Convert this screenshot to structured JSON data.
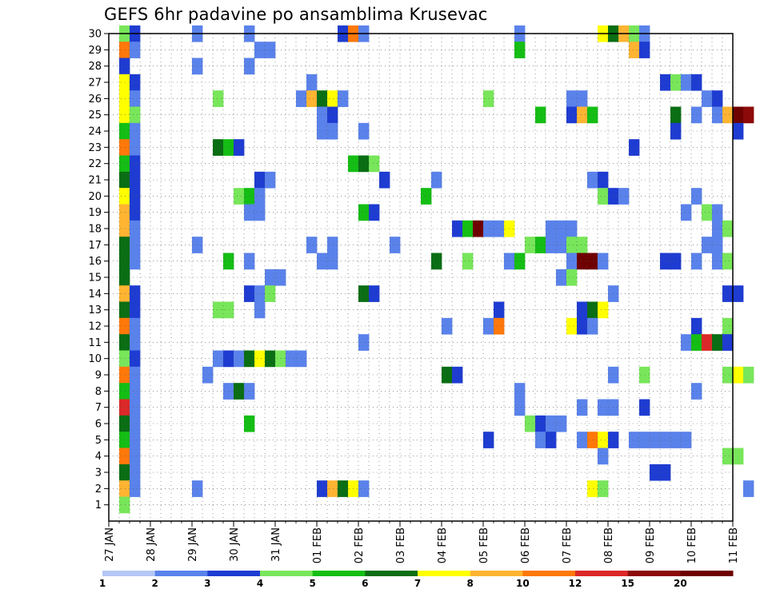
{
  "chart_data": {
    "type": "heatmap",
    "title": "GEFS 6hr padavine po ansamblima Krusevac",
    "xlabel": "",
    "ylabel": "",
    "y_ticks": [
      1,
      2,
      3,
      4,
      5,
      6,
      7,
      8,
      9,
      10,
      11,
      12,
      13,
      14,
      15,
      16,
      17,
      18,
      19,
      20,
      21,
      22,
      23,
      24,
      25,
      26,
      27,
      28,
      29,
      30
    ],
    "ylim": [
      0,
      30
    ],
    "x_tick_labels": [
      "27 JAN",
      "28 JAN",
      "29 JAN",
      "30 JAN",
      "31 JAN",
      "01 FEB",
      "02 FEB",
      "03 FEB",
      "04 FEB",
      "05 FEB",
      "06 FEB",
      "07 FEB",
      "08 FEB",
      "09 FEB",
      "10 FEB",
      "11 FEB"
    ],
    "steps_per_day": 4,
    "legend": {
      "labels": [
        "1",
        "2",
        "3",
        "4",
        "5",
        "6",
        "7",
        "8",
        "10",
        "12",
        "15",
        "20"
      ],
      "colors": [
        "#b4c8f5",
        "#5a82eb",
        "#1e3cd2",
        "#78e65a",
        "#14be14",
        "#0a6e14",
        "#ffff00",
        "#ffb432",
        "#ff780a",
        "#dc2828",
        "#8c0a0a",
        "#6e0000"
      ]
    },
    "cells": [
      {
        "m": 30,
        "s": 1,
        "c": 3
      },
      {
        "m": 30,
        "s": 2,
        "c": 2
      },
      {
        "m": 30,
        "s": 8,
        "c": 1
      },
      {
        "m": 30,
        "s": 13,
        "c": 1
      },
      {
        "m": 30,
        "s": 22,
        "c": 2
      },
      {
        "m": 30,
        "s": 23,
        "c": 8
      },
      {
        "m": 30,
        "s": 24,
        "c": 1
      },
      {
        "m": 30,
        "s": 39,
        "c": 1
      },
      {
        "m": 30,
        "s": 47,
        "c": 6
      },
      {
        "m": 30,
        "s": 48,
        "c": 5
      },
      {
        "m": 30,
        "s": 49,
        "c": 7
      },
      {
        "m": 30,
        "s": 50,
        "c": 3
      },
      {
        "m": 30,
        "s": 51,
        "c": 1
      },
      {
        "m": 29,
        "s": 1,
        "c": 8
      },
      {
        "m": 29,
        "s": 2,
        "c": 1
      },
      {
        "m": 29,
        "s": 14,
        "c": 1
      },
      {
        "m": 29,
        "s": 15,
        "c": 1
      },
      {
        "m": 29,
        "s": 39,
        "c": 4
      },
      {
        "m": 29,
        "s": 50,
        "c": 7
      },
      {
        "m": 29,
        "s": 51,
        "c": 2
      },
      {
        "m": 28,
        "s": 1,
        "c": 2
      },
      {
        "m": 28,
        "s": 8,
        "c": 1
      },
      {
        "m": 28,
        "s": 13,
        "c": 1
      },
      {
        "m": 27,
        "s": 1,
        "c": 6
      },
      {
        "m": 27,
        "s": 2,
        "c": 2
      },
      {
        "m": 27,
        "s": 19,
        "c": 1
      },
      {
        "m": 27,
        "s": 53,
        "c": 2
      },
      {
        "m": 27,
        "s": 54,
        "c": 3
      },
      {
        "m": 27,
        "s": 55,
        "c": 1
      },
      {
        "m": 27,
        "s": 56,
        "c": 2
      },
      {
        "m": 26,
        "s": 1,
        "c": 6
      },
      {
        "m": 26,
        "s": 2,
        "c": 1
      },
      {
        "m": 26,
        "s": 10,
        "c": 3
      },
      {
        "m": 26,
        "s": 18,
        "c": 1
      },
      {
        "m": 26,
        "s": 19,
        "c": 7
      },
      {
        "m": 26,
        "s": 20,
        "c": 5
      },
      {
        "m": 26,
        "s": 21,
        "c": 6
      },
      {
        "m": 26,
        "s": 22,
        "c": 1
      },
      {
        "m": 26,
        "s": 36,
        "c": 3
      },
      {
        "m": 26,
        "s": 44,
        "c": 1
      },
      {
        "m": 26,
        "s": 45,
        "c": 1
      },
      {
        "m": 26,
        "s": 57,
        "c": 1
      },
      {
        "m": 26,
        "s": 58,
        "c": 2
      },
      {
        "m": 25,
        "s": 1,
        "c": 6
      },
      {
        "m": 25,
        "s": 2,
        "c": 3
      },
      {
        "m": 25,
        "s": 20,
        "c": 1
      },
      {
        "m": 25,
        "s": 21,
        "c": 2
      },
      {
        "m": 25,
        "s": 41,
        "c": 4
      },
      {
        "m": 25,
        "s": 44,
        "c": 2
      },
      {
        "m": 25,
        "s": 45,
        "c": 7
      },
      {
        "m": 25,
        "s": 46,
        "c": 4
      },
      {
        "m": 25,
        "s": 54,
        "c": 5
      },
      {
        "m": 25,
        "s": 56,
        "c": 1
      },
      {
        "m": 25,
        "s": 58,
        "c": 1
      },
      {
        "m": 25,
        "s": 59,
        "c": 7
      },
      {
        "m": 25,
        "s": 60,
        "c": 11
      },
      {
        "m": 25,
        "s": 61,
        "c": 10
      },
      {
        "m": 24,
        "s": 1,
        "c": 4
      },
      {
        "m": 24,
        "s": 2,
        "c": 1
      },
      {
        "m": 24,
        "s": 20,
        "c": 1
      },
      {
        "m": 24,
        "s": 21,
        "c": 1
      },
      {
        "m": 24,
        "s": 24,
        "c": 1
      },
      {
        "m": 24,
        "s": 54,
        "c": 2
      },
      {
        "m": 24,
        "s": 60,
        "c": 2
      },
      {
        "m": 23,
        "s": 1,
        "c": 8
      },
      {
        "m": 23,
        "s": 2,
        "c": 1
      },
      {
        "m": 23,
        "s": 10,
        "c": 5
      },
      {
        "m": 23,
        "s": 11,
        "c": 4
      },
      {
        "m": 23,
        "s": 12,
        "c": 2
      },
      {
        "m": 23,
        "s": 50,
        "c": 2
      },
      {
        "m": 22,
        "s": 1,
        "c": 4
      },
      {
        "m": 22,
        "s": 2,
        "c": 2
      },
      {
        "m": 22,
        "s": 23,
        "c": 4
      },
      {
        "m": 22,
        "s": 24,
        "c": 5
      },
      {
        "m": 22,
        "s": 25,
        "c": 3
      },
      {
        "m": 21,
        "s": 1,
        "c": 5
      },
      {
        "m": 21,
        "s": 2,
        "c": 2
      },
      {
        "m": 21,
        "s": 14,
        "c": 2
      },
      {
        "m": 21,
        "s": 15,
        "c": 1
      },
      {
        "m": 21,
        "s": 26,
        "c": 2
      },
      {
        "m": 21,
        "s": 31,
        "c": 1
      },
      {
        "m": 21,
        "s": 46,
        "c": 1
      },
      {
        "m": 21,
        "s": 47,
        "c": 2
      },
      {
        "m": 20,
        "s": 1,
        "c": 6
      },
      {
        "m": 20,
        "s": 2,
        "c": 2
      },
      {
        "m": 20,
        "s": 12,
        "c": 3
      },
      {
        "m": 20,
        "s": 13,
        "c": 4
      },
      {
        "m": 20,
        "s": 14,
        "c": 1
      },
      {
        "m": 20,
        "s": 30,
        "c": 4
      },
      {
        "m": 20,
        "s": 47,
        "c": 3
      },
      {
        "m": 20,
        "s": 48,
        "c": 2
      },
      {
        "m": 20,
        "s": 49,
        "c": 1
      },
      {
        "m": 20,
        "s": 56,
        "c": 1
      },
      {
        "m": 19,
        "s": 1,
        "c": 7
      },
      {
        "m": 19,
        "s": 2,
        "c": 2
      },
      {
        "m": 19,
        "s": 13,
        "c": 1
      },
      {
        "m": 19,
        "s": 14,
        "c": 1
      },
      {
        "m": 19,
        "s": 24,
        "c": 4
      },
      {
        "m": 19,
        "s": 25,
        "c": 2
      },
      {
        "m": 19,
        "s": 55,
        "c": 1
      },
      {
        "m": 19,
        "s": 57,
        "c": 3
      },
      {
        "m": 19,
        "s": 58,
        "c": 1
      },
      {
        "m": 18,
        "s": 1,
        "c": 7
      },
      {
        "m": 18,
        "s": 2,
        "c": 1
      },
      {
        "m": 18,
        "s": 33,
        "c": 2
      },
      {
        "m": 18,
        "s": 34,
        "c": 4
      },
      {
        "m": 18,
        "s": 35,
        "c": 11
      },
      {
        "m": 18,
        "s": 36,
        "c": 1
      },
      {
        "m": 18,
        "s": 37,
        "c": 1
      },
      {
        "m": 18,
        "s": 38,
        "c": 6
      },
      {
        "m": 18,
        "s": 42,
        "c": 1
      },
      {
        "m": 18,
        "s": 43,
        "c": 1
      },
      {
        "m": 18,
        "s": 44,
        "c": 1
      },
      {
        "m": 18,
        "s": 58,
        "c": 1
      },
      {
        "m": 18,
        "s": 59,
        "c": 3
      },
      {
        "m": 17,
        "s": 1,
        "c": 5
      },
      {
        "m": 17,
        "s": 2,
        "c": 1
      },
      {
        "m": 17,
        "s": 8,
        "c": 1
      },
      {
        "m": 17,
        "s": 19,
        "c": 1
      },
      {
        "m": 17,
        "s": 21,
        "c": 1
      },
      {
        "m": 17,
        "s": 27,
        "c": 1
      },
      {
        "m": 17,
        "s": 40,
        "c": 3
      },
      {
        "m": 17,
        "s": 41,
        "c": 4
      },
      {
        "m": 17,
        "s": 42,
        "c": 1
      },
      {
        "m": 17,
        "s": 43,
        "c": 1
      },
      {
        "m": 17,
        "s": 44,
        "c": 3
      },
      {
        "m": 17,
        "s": 45,
        "c": 3
      },
      {
        "m": 17,
        "s": 57,
        "c": 1
      },
      {
        "m": 17,
        "s": 58,
        "c": 1
      },
      {
        "m": 16,
        "s": 1,
        "c": 5
      },
      {
        "m": 16,
        "s": 2,
        "c": 1
      },
      {
        "m": 16,
        "s": 11,
        "c": 4
      },
      {
        "m": 16,
        "s": 13,
        "c": 1
      },
      {
        "m": 16,
        "s": 20,
        "c": 1
      },
      {
        "m": 16,
        "s": 21,
        "c": 1
      },
      {
        "m": 16,
        "s": 31,
        "c": 5
      },
      {
        "m": 16,
        "s": 34,
        "c": 3
      },
      {
        "m": 16,
        "s": 38,
        "c": 1
      },
      {
        "m": 16,
        "s": 39,
        "c": 4
      },
      {
        "m": 16,
        "s": 44,
        "c": 1
      },
      {
        "m": 16,
        "s": 45,
        "c": 11
      },
      {
        "m": 16,
        "s": 46,
        "c": 11
      },
      {
        "m": 16,
        "s": 47,
        "c": 1
      },
      {
        "m": 16,
        "s": 53,
        "c": 2
      },
      {
        "m": 16,
        "s": 54,
        "c": 2
      },
      {
        "m": 16,
        "s": 56,
        "c": 1
      },
      {
        "m": 16,
        "s": 58,
        "c": 1
      },
      {
        "m": 16,
        "s": 59,
        "c": 3
      },
      {
        "m": 15,
        "s": 1,
        "c": 5
      },
      {
        "m": 15,
        "s": 15,
        "c": 1
      },
      {
        "m": 15,
        "s": 16,
        "c": 1
      },
      {
        "m": 15,
        "s": 43,
        "c": 1
      },
      {
        "m": 15,
        "s": 44,
        "c": 3
      },
      {
        "m": 14,
        "s": 1,
        "c": 7
      },
      {
        "m": 14,
        "s": 2,
        "c": 2
      },
      {
        "m": 14,
        "s": 13,
        "c": 2
      },
      {
        "m": 14,
        "s": 14,
        "c": 1
      },
      {
        "m": 14,
        "s": 15,
        "c": 3
      },
      {
        "m": 14,
        "s": 24,
        "c": 5
      },
      {
        "m": 14,
        "s": 25,
        "c": 2
      },
      {
        "m": 14,
        "s": 48,
        "c": 1
      },
      {
        "m": 14,
        "s": 59,
        "c": 2
      },
      {
        "m": 14,
        "s": 60,
        "c": 2
      },
      {
        "m": 13,
        "s": 1,
        "c": 5
      },
      {
        "m": 13,
        "s": 2,
        "c": 2
      },
      {
        "m": 13,
        "s": 14,
        "c": 1
      },
      {
        "m": 13,
        "s": 10,
        "c": 3
      },
      {
        "m": 13,
        "s": 11,
        "c": 3
      },
      {
        "m": 13,
        "s": 37,
        "c": 2
      },
      {
        "m": 13,
        "s": 45,
        "c": 2
      },
      {
        "m": 13,
        "s": 46,
        "c": 5
      },
      {
        "m": 13,
        "s": 47,
        "c": 6
      },
      {
        "m": 12,
        "s": 1,
        "c": 8
      },
      {
        "m": 12,
        "s": 2,
        "c": 1
      },
      {
        "m": 12,
        "s": 32,
        "c": 1
      },
      {
        "m": 12,
        "s": 36,
        "c": 1
      },
      {
        "m": 12,
        "s": 37,
        "c": 8
      },
      {
        "m": 12,
        "s": 44,
        "c": 6
      },
      {
        "m": 12,
        "s": 45,
        "c": 2
      },
      {
        "m": 12,
        "s": 46,
        "c": 1
      },
      {
        "m": 12,
        "s": 56,
        "c": 2
      },
      {
        "m": 12,
        "s": 59,
        "c": 3
      },
      {
        "m": 11,
        "s": 1,
        "c": 5
      },
      {
        "m": 11,
        "s": 2,
        "c": 1
      },
      {
        "m": 11,
        "s": 24,
        "c": 1
      },
      {
        "m": 11,
        "s": 55,
        "c": 1
      },
      {
        "m": 11,
        "s": 56,
        "c": 4
      },
      {
        "m": 11,
        "s": 57,
        "c": 9
      },
      {
        "m": 11,
        "s": 58,
        "c": 5
      },
      {
        "m": 11,
        "s": 59,
        "c": 2
      },
      {
        "m": 10,
        "s": 1,
        "c": 3
      },
      {
        "m": 10,
        "s": 2,
        "c": 2
      },
      {
        "m": 10,
        "s": 10,
        "c": 1
      },
      {
        "m": 10,
        "s": 11,
        "c": 2
      },
      {
        "m": 10,
        "s": 12,
        "c": 1
      },
      {
        "m": 10,
        "s": 13,
        "c": 5
      },
      {
        "m": 10,
        "s": 14,
        "c": 6
      },
      {
        "m": 10,
        "s": 15,
        "c": 5
      },
      {
        "m": 10,
        "s": 16,
        "c": 3
      },
      {
        "m": 10,
        "s": 17,
        "c": 1
      },
      {
        "m": 10,
        "s": 18,
        "c": 1
      },
      {
        "m": 9,
        "s": 1,
        "c": 8
      },
      {
        "m": 9,
        "s": 2,
        "c": 1
      },
      {
        "m": 9,
        "s": 9,
        "c": 1
      },
      {
        "m": 9,
        "s": 32,
        "c": 5
      },
      {
        "m": 9,
        "s": 33,
        "c": 2
      },
      {
        "m": 9,
        "s": 48,
        "c": 1
      },
      {
        "m": 9,
        "s": 51,
        "c": 3
      },
      {
        "m": 9,
        "s": 59,
        "c": 3
      },
      {
        "m": 9,
        "s": 60,
        "c": 6
      },
      {
        "m": 9,
        "s": 61,
        "c": 3
      },
      {
        "m": 8,
        "s": 1,
        "c": 4
      },
      {
        "m": 8,
        "s": 2,
        "c": 1
      },
      {
        "m": 8,
        "s": 11,
        "c": 1
      },
      {
        "m": 8,
        "s": 12,
        "c": 5
      },
      {
        "m": 8,
        "s": 13,
        "c": 1
      },
      {
        "m": 8,
        "s": 39,
        "c": 1
      },
      {
        "m": 8,
        "s": 56,
        "c": 1
      },
      {
        "m": 7,
        "s": 1,
        "c": 9
      },
      {
        "m": 7,
        "s": 2,
        "c": 1
      },
      {
        "m": 7,
        "s": 39,
        "c": 1
      },
      {
        "m": 7,
        "s": 45,
        "c": 1
      },
      {
        "m": 7,
        "s": 47,
        "c": 1
      },
      {
        "m": 7,
        "s": 48,
        "c": 1
      },
      {
        "m": 7,
        "s": 51,
        "c": 2
      },
      {
        "m": 6,
        "s": 1,
        "c": 5
      },
      {
        "m": 6,
        "s": 2,
        "c": 1
      },
      {
        "m": 6,
        "s": 13,
        "c": 4
      },
      {
        "m": 6,
        "s": 40,
        "c": 3
      },
      {
        "m": 6,
        "s": 41,
        "c": 2
      },
      {
        "m": 6,
        "s": 42,
        "c": 1
      },
      {
        "m": 6,
        "s": 43,
        "c": 1
      },
      {
        "m": 5,
        "s": 1,
        "c": 4
      },
      {
        "m": 5,
        "s": 2,
        "c": 1
      },
      {
        "m": 5,
        "s": 36,
        "c": 2
      },
      {
        "m": 5,
        "s": 41,
        "c": 1
      },
      {
        "m": 5,
        "s": 42,
        "c": 2
      },
      {
        "m": 5,
        "s": 45,
        "c": 1
      },
      {
        "m": 5,
        "s": 46,
        "c": 8
      },
      {
        "m": 5,
        "s": 47,
        "c": 6
      },
      {
        "m": 5,
        "s": 48,
        "c": 2
      },
      {
        "m": 5,
        "s": 50,
        "c": 1
      },
      {
        "m": 5,
        "s": 51,
        "c": 1
      },
      {
        "m": 5,
        "s": 52,
        "c": 1
      },
      {
        "m": 5,
        "s": 53,
        "c": 1
      },
      {
        "m": 5,
        "s": 54,
        "c": 1
      },
      {
        "m": 5,
        "s": 55,
        "c": 1
      },
      {
        "m": 4,
        "s": 1,
        "c": 8
      },
      {
        "m": 4,
        "s": 2,
        "c": 1
      },
      {
        "m": 4,
        "s": 47,
        "c": 1
      },
      {
        "m": 4,
        "s": 59,
        "c": 3
      },
      {
        "m": 4,
        "s": 60,
        "c": 3
      },
      {
        "m": 3,
        "s": 1,
        "c": 5
      },
      {
        "m": 3,
        "s": 2,
        "c": 1
      },
      {
        "m": 3,
        "s": 52,
        "c": 2
      },
      {
        "m": 3,
        "s": 53,
        "c": 2
      },
      {
        "m": 2,
        "s": 1,
        "c": 7
      },
      {
        "m": 2,
        "s": 2,
        "c": 1
      },
      {
        "m": 2,
        "s": 8,
        "c": 1
      },
      {
        "m": 2,
        "s": 20,
        "c": 2
      },
      {
        "m": 2,
        "s": 21,
        "c": 7
      },
      {
        "m": 2,
        "s": 22,
        "c": 5
      },
      {
        "m": 2,
        "s": 23,
        "c": 6
      },
      {
        "m": 2,
        "s": 24,
        "c": 1
      },
      {
        "m": 2,
        "s": 46,
        "c": 6
      },
      {
        "m": 2,
        "s": 47,
        "c": 3
      },
      {
        "m": 2,
        "s": 61,
        "c": 1
      },
      {
        "m": 1,
        "s": 1,
        "c": 3
      }
    ]
  }
}
